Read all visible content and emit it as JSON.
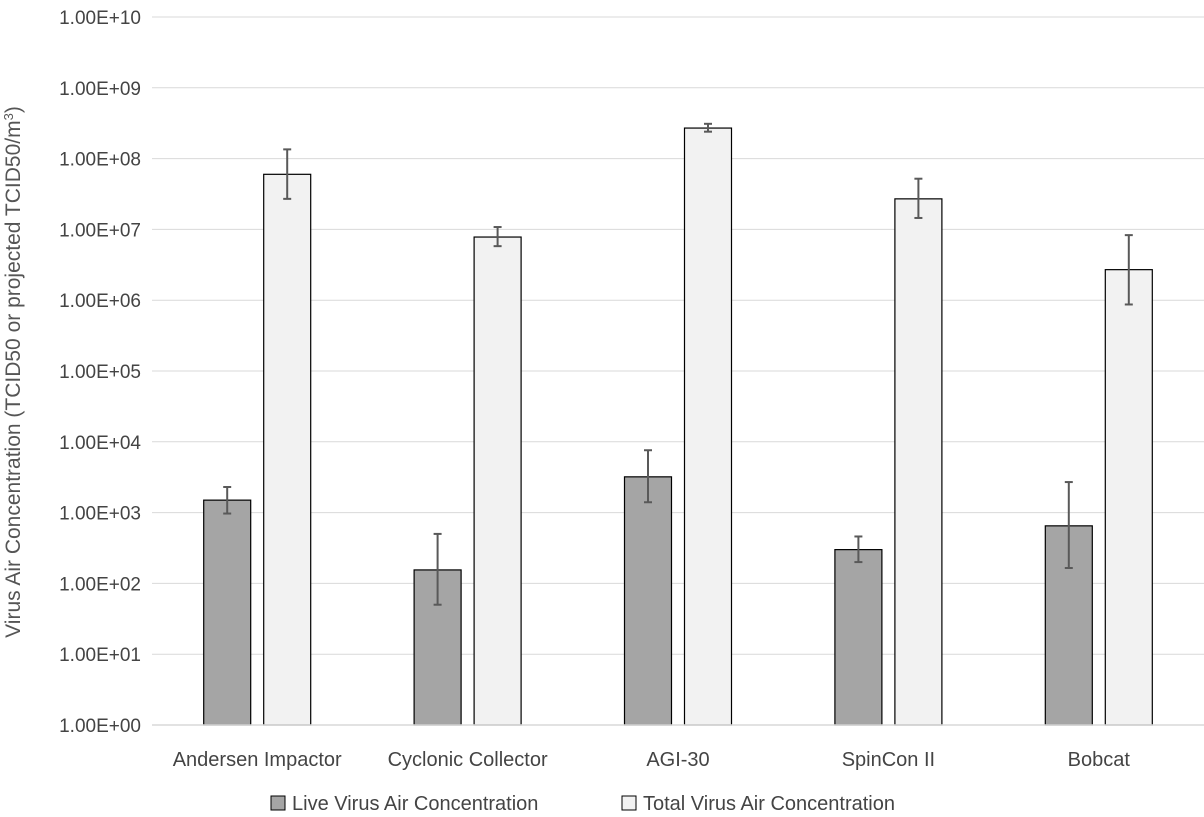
{
  "chart_data": {
    "type": "bar",
    "log_scale_y": true,
    "ylim": [
      1,
      10000000000
    ],
    "grid": true,
    "legend_position": "bottom",
    "ylabel": "Virus Air Concentration (TCID50 or projected TCID50/m³)",
    "ylabel_parts": [
      "Virus Air Concentration (TCID50 or projected TCID50/m",
      "3",
      ")"
    ],
    "y_tick_labels": [
      "1.00E+00",
      "1.00E+01",
      "1.00E+02",
      "1.00E+03",
      "1.00E+04",
      "1.00E+05",
      "1.00E+06",
      "1.00E+07",
      "1.00E+08",
      "1.00E+09",
      "1.00E+10"
    ],
    "categories": [
      "Andersen Impactor",
      "Cyclonic Collector",
      "AGI-30",
      "SpinCon II",
      "Bobcat"
    ],
    "series": [
      {
        "name": "Live Virus Air Concentration",
        "color": "#a5a5a5",
        "values": [
          1500,
          155,
          3200,
          300,
          650
        ],
        "error_low": [
          970,
          50,
          1400,
          200,
          165
        ],
        "error_high": [
          2300,
          500,
          7600,
          460,
          2700
        ]
      },
      {
        "name": "Total Virus Air Concentration",
        "color": "#f2f2f2",
        "values": [
          60000000,
          7800000,
          270000000,
          27000000,
          2700000
        ],
        "error_low": [
          27000000,
          5800000,
          240000000,
          14500000,
          870000
        ],
        "error_high": [
          135000000,
          10800000,
          310000000,
          52000000,
          8300000
        ]
      }
    ]
  }
}
